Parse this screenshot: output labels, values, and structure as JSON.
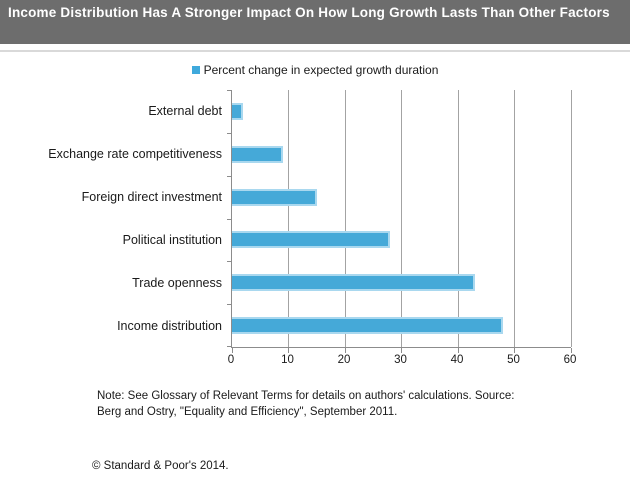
{
  "header": {
    "title": "Income Distribution Has A Stronger Impact On How Long Growth Lasts Than Other Factors",
    "bg_color": "#6D6D6D",
    "text_color": "#FFFFFF"
  },
  "legend": {
    "label": "Percent change in expected growth duration",
    "marker_color": "#3FA9DC"
  },
  "chart_data": {
    "type": "bar",
    "orientation": "horizontal",
    "title": "Income Distribution Has A Stronger Impact On How Long Growth Lasts Than Other Factors",
    "series_label": "Percent change in expected growth duration",
    "categories": [
      "External debt",
      "Exchange rate competitiveness",
      "Foreign direct investment",
      "Political institution",
      "Trade openness",
      "Income distribution"
    ],
    "values": [
      2,
      9,
      15,
      28,
      43,
      48
    ],
    "xlabel": "",
    "ylabel": "",
    "xlim": [
      0,
      60
    ],
    "xticks": [
      0,
      10,
      20,
      30,
      40,
      50,
      60
    ],
    "grid": true,
    "legend_position": "top-center",
    "bar_color": "#45A9D8",
    "bar_border_color": "#A9D8EF"
  },
  "footer": {
    "note_line1": "Note: See Glossary of Relevant Terms for details on authors' calculations.  Source:",
    "note_line2": "Berg and Ostry, \"Equality and Efficiency\", September 2011.",
    "copyright": "© Standard & Poor's 2014."
  }
}
